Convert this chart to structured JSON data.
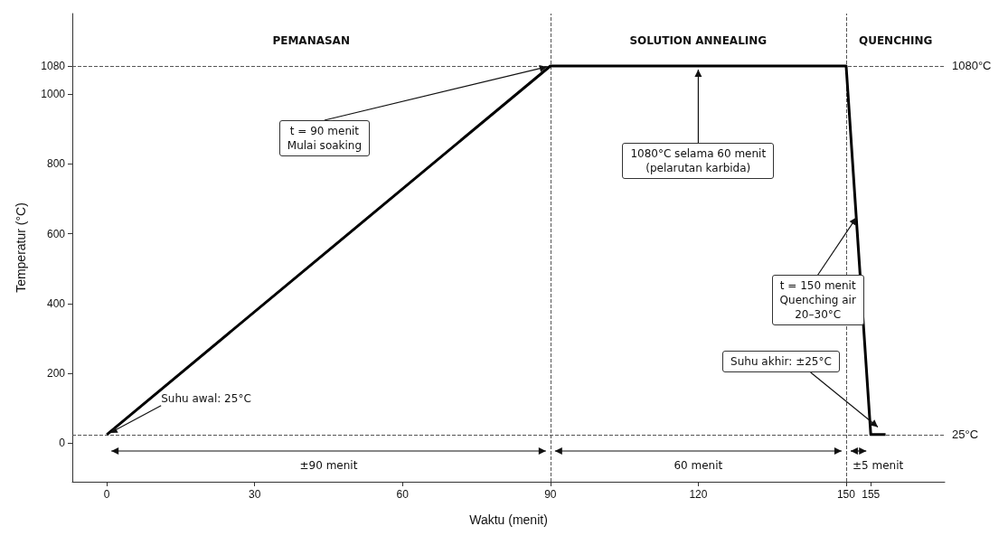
{
  "chart_data": {
    "type": "line",
    "xlabel": "Waktu (menit)",
    "ylabel": "Temperatur (°C)",
    "x": [
      0,
      90,
      150,
      155,
      158
    ],
    "series": [
      {
        "color": "#000000",
        "values": [
          25,
          1080,
          1080,
          25,
          25
        ]
      }
    ],
    "xlim": [
      -7,
      170
    ],
    "xticks": [
      0,
      30,
      60,
      90,
      120,
      150,
      155
    ],
    "ylim": [
      -110,
      1230
    ],
    "yticks": [
      0,
      200,
      400,
      600,
      800,
      1000,
      1080
    ],
    "marker": "none",
    "line_style": "solid",
    "grid": false,
    "ref_lines": [
      {
        "axis": "x",
        "value": 90,
        "label": null,
        "line_style": "dashed",
        "color": "#555555"
      },
      {
        "axis": "x",
        "value": 150,
        "label": null,
        "line_style": "dashed",
        "color": "#555555"
      },
      {
        "axis": "y",
        "value": 1080,
        "label": "1080°C",
        "line_style": "dashed",
        "color": "#555555"
      },
      {
        "axis": "y",
        "value": 25,
        "label": "25°C",
        "line_style": "dashed",
        "color": "#555555"
      }
    ],
    "annotations": [
      "PEMANASAN",
      "SOLUTION ANNEALING",
      "QUENCHING",
      "±90 menit",
      "60 menit",
      "±5 menit",
      {
        "text": "Suhu awal: 25°C",
        "x": 0,
        "y": 25
      },
      {
        "text": "t = 90 menit\nMulai soaking",
        "x": 90,
        "y": 1080
      },
      {
        "text": "1080°C selama 60 menit\n(pelarutan karbida)",
        "x": 120,
        "y": 1080
      },
      {
        "text": "t = 150 menit\nQuenching air\n20–30°C",
        "x": 152.5,
        "y": 655
      },
      {
        "text": "Suhu akhir: ±25°C",
        "x": 157,
        "y": 40
      }
    ]
  }
}
